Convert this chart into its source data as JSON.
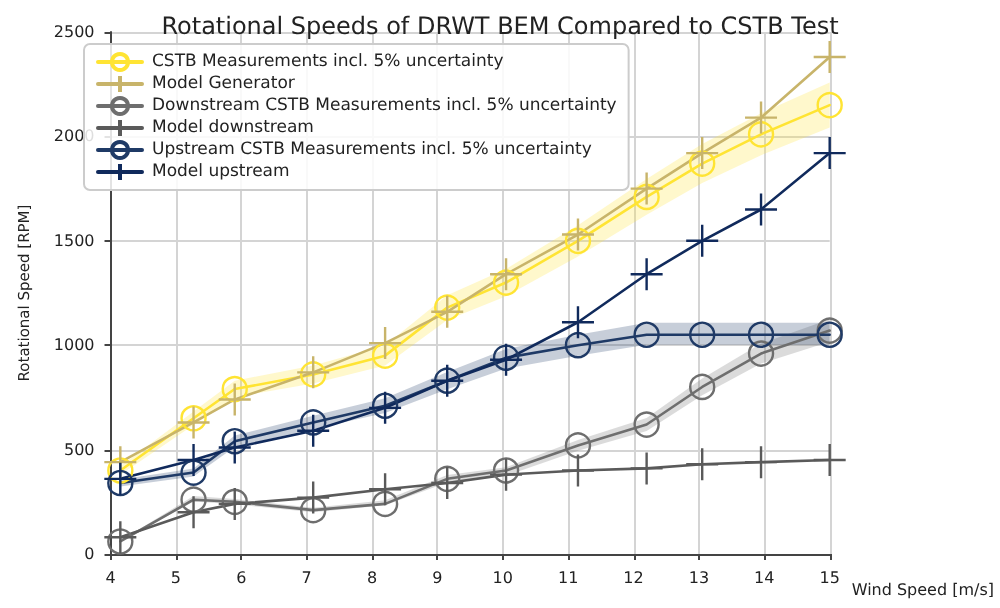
{
  "chart_data": {
    "type": "line",
    "title": "Rotational Speeds of DRWT BEM Compared to CSTB Test",
    "xlabel": "Wind Speed [m/s]",
    "ylabel": "Rotational Speed [RPM]",
    "x": [
      4.15,
      5.27,
      5.9,
      7.1,
      8.2,
      9.15,
      10.05,
      11.15,
      12.2,
      13.05,
      13.95,
      15.0
    ],
    "series": [
      {
        "name": "CSTB Measurements incl. 5% uncertainty",
        "color": "#ffe433",
        "marker": "circle",
        "values": [
          400,
          650,
          790,
          860,
          950,
          1180,
          1300,
          1500,
          1710,
          1870,
          2010,
          2150
        ],
        "lower": [
          380,
          618,
          751,
          817,
          903,
          1121,
          1235,
          1425,
          1625,
          1777,
          1910,
          2043
        ],
        "upper": [
          420,
          683,
          830,
          903,
          998,
          1239,
          1365,
          1575,
          1796,
          1964,
          2111,
          2258
        ]
      },
      {
        "name": "Model Generator",
        "color": "#c8b46a",
        "marker": "cross",
        "values": [
          440,
          630,
          740,
          870,
          1010,
          1160,
          1340,
          1530,
          1750,
          1920,
          2090,
          2380
        ]
      },
      {
        "name": "Downstream CSTB Measurements incl. 5% uncertainty",
        "color": "#6e6e6e",
        "marker": "circle",
        "values": [
          60,
          260,
          250,
          210,
          240,
          360,
          400,
          520,
          620,
          800,
          960,
          1070
        ],
        "lower": [
          57,
          252,
          238,
          200,
          233,
          342,
          375,
          494,
          589,
          760,
          912,
          1017
        ],
        "upper": [
          63,
          278,
          263,
          221,
          257,
          378,
          415,
          546,
          651,
          840,
          1008,
          1124
        ]
      },
      {
        "name": "Model downstream",
        "color": "#5a5a5a",
        "marker": "cross",
        "values": [
          80,
          200,
          240,
          270,
          310,
          340,
          380,
          400,
          410,
          430,
          440,
          450
        ]
      },
      {
        "name": "Upstream CSTB Measurements incl. 5% uncertainty",
        "color": "#1f3a66",
        "marker": "circle",
        "values": [
          340,
          390,
          540,
          630,
          710,
          830,
          940,
          1000,
          1050,
          1050,
          1050,
          1050
        ],
        "lower": [
          323,
          371,
          513,
          599,
          675,
          789,
          888,
          950,
          1002,
          1002,
          1002,
          1002
        ],
        "upper": [
          357,
          410,
          567,
          662,
          746,
          872,
          982,
          1050,
          1108,
          1108,
          1108,
          1108
        ]
      },
      {
        "name": "Model upstream",
        "color": "#102a5c",
        "marker": "cross",
        "values": [
          360,
          450,
          510,
          590,
          700,
          830,
          930,
          1110,
          1340,
          1500,
          1650,
          1920
        ]
      }
    ],
    "xlim": [
      4,
      15
    ],
    "xticks": [
      4,
      5,
      6,
      7,
      8,
      9,
      10,
      11,
      12,
      13,
      14,
      15
    ],
    "ylim": [
      0,
      2500
    ],
    "yticks": [
      0,
      500,
      1000,
      1500,
      2000,
      2500
    ],
    "grid": true,
    "legend": "top left"
  }
}
